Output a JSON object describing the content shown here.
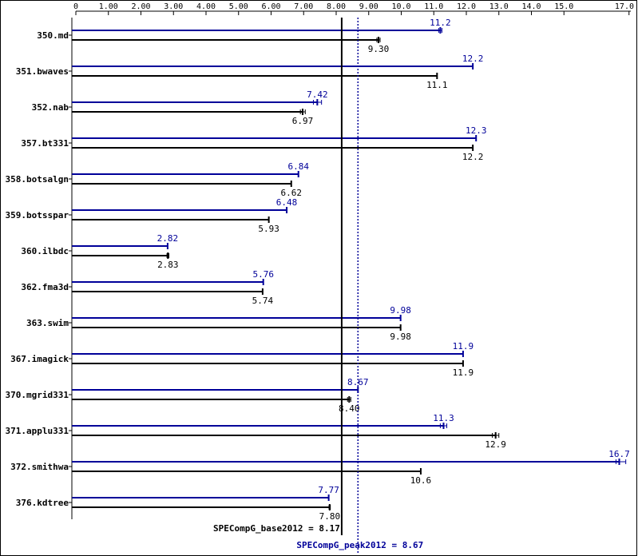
{
  "chart_data": {
    "type": "bar",
    "orientation": "horizontal",
    "categories": [
      "350.md",
      "351.bwaves",
      "352.nab",
      "357.bt331",
      "358.botsalgn",
      "359.botsspar",
      "360.ilbdc",
      "362.fma3d",
      "363.swim",
      "367.imagick",
      "370.mgrid331",
      "371.applu331",
      "372.smithwa",
      "376.kdtree"
    ],
    "series": [
      {
        "name": "SPECompG_peak2012",
        "values": [
          11.2,
          12.2,
          7.42,
          12.3,
          6.84,
          6.48,
          2.82,
          5.76,
          9.98,
          11.9,
          8.67,
          11.3,
          16.7,
          7.77
        ],
        "value_labels": [
          "11.2",
          "12.2",
          "7.42",
          "12.3",
          "6.84",
          "6.48",
          "2.82",
          "5.76",
          "9.98",
          "11.9",
          "8.67",
          "11.3",
          "16.7",
          "7.77"
        ],
        "ranges": [
          [
            11.15,
            11.25
          ],
          [
            12.2,
            12.2
          ],
          [
            7.3,
            7.55
          ],
          [
            12.3,
            12.3
          ],
          [
            6.84,
            6.84
          ],
          [
            6.48,
            6.48
          ],
          [
            2.82,
            2.82
          ],
          [
            5.76,
            5.76
          ],
          [
            9.98,
            9.98
          ],
          [
            11.9,
            11.9
          ],
          [
            8.67,
            8.67
          ],
          [
            11.2,
            11.4
          ],
          [
            16.6,
            16.9
          ],
          [
            7.77,
            7.77
          ]
        ],
        "color": "#000099"
      },
      {
        "name": "SPECompG_base2012",
        "values": [
          9.3,
          11.1,
          6.97,
          12.2,
          6.62,
          5.93,
          2.83,
          5.74,
          9.98,
          11.9,
          8.4,
          12.9,
          10.6,
          7.8
        ],
        "value_labels": [
          "9.30",
          "11.1",
          "6.97",
          "12.2",
          "6.62",
          "5.93",
          "2.83",
          "5.74",
          "9.98",
          "11.9",
          "8.40",
          "12.9",
          "10.6",
          "7.80"
        ],
        "ranges": [
          [
            9.25,
            9.35
          ],
          [
            11.1,
            11.1
          ],
          [
            6.9,
            7.05
          ],
          [
            12.2,
            12.2
          ],
          [
            6.62,
            6.62
          ],
          [
            5.93,
            5.93
          ],
          [
            2.8,
            2.86
          ],
          [
            5.74,
            5.74
          ],
          [
            9.98,
            9.98
          ],
          [
            11.9,
            11.9
          ],
          [
            8.35,
            8.45
          ],
          [
            12.8,
            13.0
          ],
          [
            10.6,
            10.6
          ],
          [
            7.78,
            7.82
          ]
        ],
        "color": "#000000"
      }
    ],
    "x_ticks": [
      0,
      1,
      2,
      3,
      4,
      5,
      6,
      7,
      8,
      9,
      10,
      11,
      12,
      13,
      14,
      15,
      17
    ],
    "x_tick_labels": [
      "0",
      "1.00",
      "2.00",
      "3.00",
      "4.00",
      "5.00",
      "6.00",
      "7.00",
      "8.00",
      "9.00",
      "10.0",
      "11.0",
      "12.0",
      "13.0",
      "14.0",
      "15.0",
      "17.0"
    ],
    "xlim": [
      0,
      17
    ],
    "reference_lines": [
      {
        "series": "SPECompG_base2012",
        "value": 8.17,
        "label": "SPECompG_base2012 = 8.17",
        "style": "solid",
        "color": "#000000"
      },
      {
        "series": "SPECompG_peak2012",
        "value": 8.67,
        "label": "SPECompG_peak2012 = 8.67",
        "style": "dotted",
        "color": "#000099"
      }
    ],
    "title": "",
    "xlabel": "",
    "ylabel": "",
    "grid": false,
    "legend": "none"
  }
}
